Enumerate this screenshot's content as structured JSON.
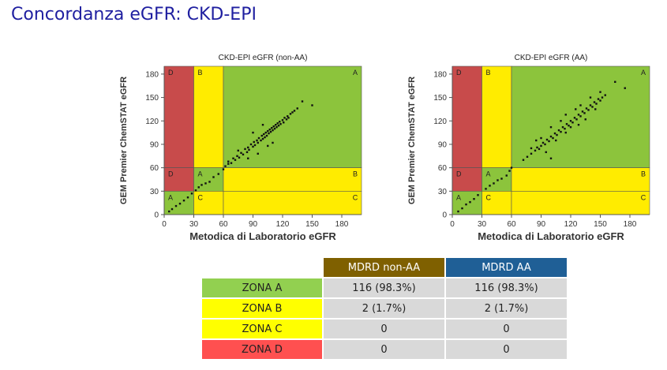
{
  "title": "Concordanza eGFR: CKD-EPI",
  "charts": [
    {
      "type": "scatter",
      "title": "CKD-EPI eGFR (non-AA)",
      "xlabel": "Metodica di Laboratorio eGFR",
      "ylabel": "GEM Premier ChemSTAT eGFR",
      "xlim": [
        0,
        200
      ],
      "ylim": [
        0,
        190
      ],
      "x_ticks": [
        0,
        30,
        60,
        90,
        120,
        150,
        180
      ],
      "y_ticks": [
        0,
        30,
        60,
        90,
        120,
        150,
        180
      ],
      "zones": [
        {
          "label": "D",
          "x": [
            0,
            30
          ],
          "y": [
            60,
            190
          ],
          "color": "#c84b4b"
        },
        {
          "label": "B",
          "x": [
            30,
            60
          ],
          "y": [
            60,
            190
          ],
          "color": "#ffec00"
        },
        {
          "label": "A",
          "x": [
            60,
            200
          ],
          "y": [
            60,
            190
          ],
          "color": "#8cc43c"
        },
        {
          "label": "D",
          "x": [
            0,
            30
          ],
          "y": [
            30,
            60
          ],
          "color": "#c84b4b"
        },
        {
          "label": "A",
          "x": [
            30,
            60
          ],
          "y": [
            30,
            60
          ],
          "color": "#8cc43c"
        },
        {
          "label": "B",
          "x": [
            60,
            200
          ],
          "y": [
            30,
            60
          ],
          "color": "#ffec00"
        },
        {
          "label": "A",
          "x": [
            0,
            30
          ],
          "y": [
            0,
            30
          ],
          "color": "#8cc43c"
        },
        {
          "label": "C",
          "x": [
            30,
            60
          ],
          "y": [
            0,
            30
          ],
          "color": "#ffec00"
        },
        {
          "label": "C",
          "x": [
            60,
            200
          ],
          "y": [
            0,
            30
          ],
          "color": "#ffec00"
        }
      ],
      "points": [
        [
          5,
          4
        ],
        [
          8,
          7
        ],
        [
          12,
          11
        ],
        [
          16,
          14
        ],
        [
          20,
          18
        ],
        [
          24,
          22
        ],
        [
          28,
          27
        ],
        [
          32,
          31
        ],
        [
          35,
          35
        ],
        [
          38,
          38
        ],
        [
          42,
          40
        ],
        [
          46,
          42
        ],
        [
          50,
          48
        ],
        [
          55,
          52
        ],
        [
          60,
          58
        ],
        [
          62,
          62
        ],
        [
          65,
          68
        ],
        [
          68,
          66
        ],
        [
          70,
          72
        ],
        [
          72,
          70
        ],
        [
          74,
          75
        ],
        [
          76,
          73
        ],
        [
          78,
          79
        ],
        [
          80,
          77
        ],
        [
          82,
          84
        ],
        [
          84,
          80
        ],
        [
          85,
          86
        ],
        [
          86,
          83
        ],
        [
          88,
          90
        ],
        [
          90,
          87
        ],
        [
          91,
          93
        ],
        [
          92,
          89
        ],
        [
          94,
          95
        ],
        [
          95,
          92
        ],
        [
          96,
          98
        ],
        [
          98,
          95
        ],
        [
          99,
          101
        ],
        [
          100,
          97
        ],
        [
          101,
          103
        ],
        [
          102,
          99
        ],
        [
          103,
          105
        ],
        [
          104,
          101
        ],
        [
          105,
          107
        ],
        [
          106,
          104
        ],
        [
          107,
          109
        ],
        [
          108,
          106
        ],
        [
          109,
          111
        ],
        [
          110,
          108
        ],
        [
          111,
          113
        ],
        [
          112,
          110
        ],
        [
          113,
          115
        ],
        [
          114,
          112
        ],
        [
          115,
          117
        ],
        [
          116,
          114
        ],
        [
          117,
          119
        ],
        [
          118,
          116
        ],
        [
          120,
          121
        ],
        [
          121,
          118
        ],
        [
          122,
          124
        ],
        [
          124,
          122
        ],
        [
          125,
          126
        ],
        [
          126,
          124
        ],
        [
          128,
          129
        ],
        [
          130,
          131
        ],
        [
          132,
          133
        ],
        [
          135,
          136
        ],
        [
          85,
          72
        ],
        [
          95,
          78
        ],
        [
          110,
          92
        ],
        [
          100,
          115
        ],
        [
          90,
          105
        ],
        [
          140,
          145
        ],
        [
          150,
          140
        ],
        [
          65,
          65
        ],
        [
          75,
          82
        ],
        [
          105,
          88
        ]
      ]
    },
    {
      "type": "scatter",
      "title": "CKD-EPI eGFR (AA)",
      "xlabel": "Metodica di Laboratorio eGFR",
      "ylabel": "GEM Premier ChemSTAT eGFR",
      "xlim": [
        0,
        200
      ],
      "ylim": [
        0,
        190
      ],
      "x_ticks": [
        0,
        30,
        60,
        90,
        120,
        150,
        180
      ],
      "y_ticks": [
        0,
        30,
        60,
        90,
        120,
        150,
        180
      ],
      "zones": [
        {
          "label": "D",
          "x": [
            0,
            30
          ],
          "y": [
            60,
            190
          ],
          "color": "#c84b4b"
        },
        {
          "label": "B",
          "x": [
            30,
            60
          ],
          "y": [
            60,
            190
          ],
          "color": "#ffec00"
        },
        {
          "label": "A",
          "x": [
            60,
            200
          ],
          "y": [
            60,
            190
          ],
          "color": "#8cc43c"
        },
        {
          "label": "D",
          "x": [
            0,
            30
          ],
          "y": [
            30,
            60
          ],
          "color": "#c84b4b"
        },
        {
          "label": "A",
          "x": [
            30,
            60
          ],
          "y": [
            30,
            60
          ],
          "color": "#8cc43c"
        },
        {
          "label": "B",
          "x": [
            60,
            200
          ],
          "y": [
            30,
            60
          ],
          "color": "#ffec00"
        },
        {
          "label": "A",
          "x": [
            0,
            30
          ],
          "y": [
            0,
            30
          ],
          "color": "#8cc43c"
        },
        {
          "label": "C",
          "x": [
            30,
            60
          ],
          "y": [
            0,
            30
          ],
          "color": "#ffec00"
        },
        {
          "label": "C",
          "x": [
            60,
            200
          ],
          "y": [
            0,
            30
          ],
          "color": "#ffec00"
        }
      ],
      "points": [
        [
          6,
          4
        ],
        [
          10,
          8
        ],
        [
          14,
          13
        ],
        [
          18,
          16
        ],
        [
          22,
          20
        ],
        [
          26,
          25
        ],
        [
          34,
          33
        ],
        [
          38,
          37
        ],
        [
          42,
          40
        ],
        [
          46,
          44
        ],
        [
          50,
          46
        ],
        [
          55,
          50
        ],
        [
          58,
          56
        ],
        [
          60,
          60
        ],
        [
          72,
          70
        ],
        [
          76,
          74
        ],
        [
          80,
          78
        ],
        [
          84,
          82
        ],
        [
          86,
          86
        ],
        [
          88,
          84
        ],
        [
          90,
          88
        ],
        [
          92,
          92
        ],
        [
          94,
          90
        ],
        [
          96,
          96
        ],
        [
          98,
          94
        ],
        [
          100,
          100
        ],
        [
          102,
          98
        ],
        [
          104,
          104
        ],
        [
          106,
          102
        ],
        [
          108,
          108
        ],
        [
          110,
          106
        ],
        [
          112,
          112
        ],
        [
          114,
          110
        ],
        [
          116,
          116
        ],
        [
          118,
          114
        ],
        [
          120,
          120
        ],
        [
          122,
          118
        ],
        [
          124,
          124
        ],
        [
          126,
          122
        ],
        [
          128,
          128
        ],
        [
          130,
          126
        ],
        [
          132,
          132
        ],
        [
          134,
          130
        ],
        [
          136,
          136
        ],
        [
          138,
          134
        ],
        [
          140,
          140
        ],
        [
          142,
          138
        ],
        [
          144,
          144
        ],
        [
          146,
          142
        ],
        [
          148,
          148
        ],
        [
          150,
          146
        ],
        [
          152,
          150
        ],
        [
          155,
          153
        ],
        [
          100,
          112
        ],
        [
          110,
          120
        ],
        [
          120,
          112
        ],
        [
          105,
          95
        ],
        [
          95,
          80
        ],
        [
          130,
          140
        ],
        [
          140,
          150
        ],
        [
          125,
          135
        ],
        [
          115,
          128
        ],
        [
          85,
          95
        ],
        [
          165,
          170
        ],
        [
          175,
          162
        ],
        [
          150,
          157
        ],
        [
          135,
          122
        ],
        [
          115,
          105
        ],
        [
          100,
          72
        ],
        [
          90,
          98
        ],
        [
          80,
          85
        ],
        [
          145,
          135
        ],
        [
          128,
          115
        ]
      ]
    }
  ],
  "table": {
    "headers": [
      {
        "label": "MDRD non-AA",
        "color": "#7f6000"
      },
      {
        "label": "MDRD AA",
        "color": "#1f5f96"
      }
    ],
    "rows": [
      {
        "label": "ZONA A",
        "color": "#92d050",
        "values": [
          "116 (98.3%)",
          "116 (98.3%)"
        ]
      },
      {
        "label": "ZONA B",
        "color": "#ffff00",
        "values": [
          "2 (1.7%)",
          "2 (1.7%)"
        ]
      },
      {
        "label": "ZONA C",
        "color": "#ffff00",
        "values": [
          "0",
          "0"
        ]
      },
      {
        "label": "ZONA D",
        "color": "#ff5050",
        "values": [
          "0",
          "0"
        ]
      }
    ]
  }
}
